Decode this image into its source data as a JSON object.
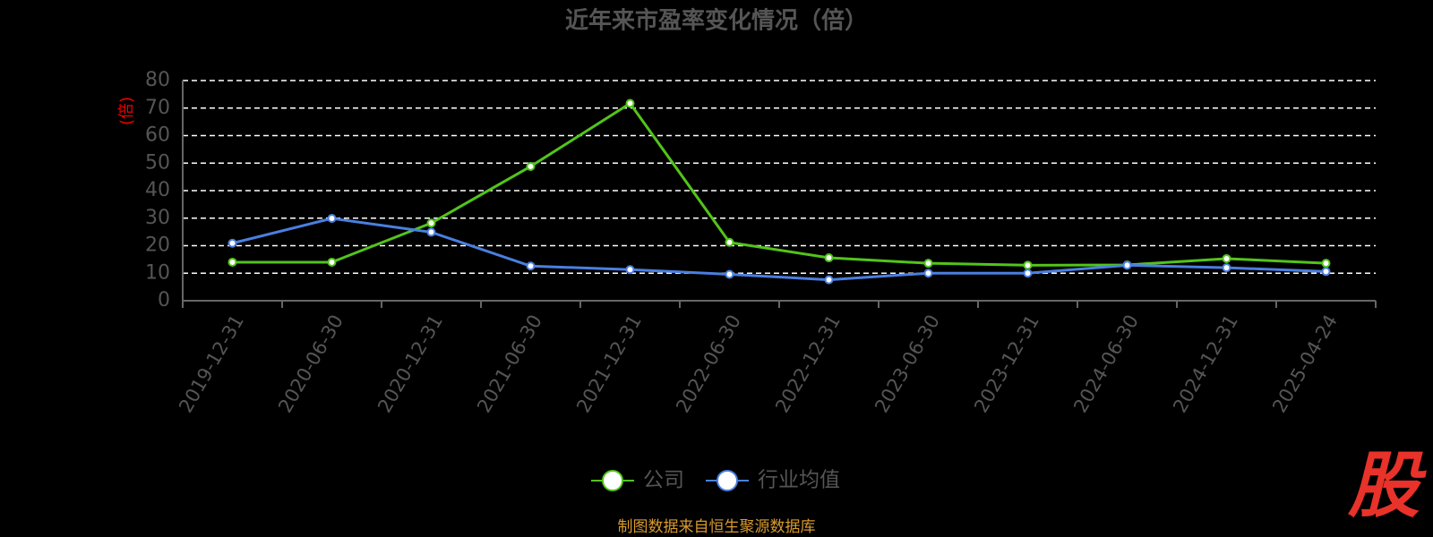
{
  "chart_data": {
    "type": "line",
    "title": "近年来市盈率变化情况（倍）",
    "y_label": "(倍)",
    "categories": [
      "2019-12-31",
      "2020-06-30",
      "2020-12-31",
      "2021-06-30",
      "2021-12-31",
      "2022-06-30",
      "2022-12-31",
      "2023-06-30",
      "2023-12-31",
      "2024-06-30",
      "2024-12-31",
      "2025-04-24"
    ],
    "series": [
      {
        "name": "公司",
        "color": "#52c41a",
        "values": [
          14,
          14,
          28.2,
          48.8,
          71.7,
          21.2,
          15.6,
          13.6,
          12.9,
          13,
          15.3,
          13.6
        ]
      },
      {
        "name": "行业均值",
        "color": "#4a7fe0",
        "values": [
          20.9,
          29.9,
          24.9,
          12.6,
          11.3,
          9.6,
          7.6,
          10,
          10,
          12.9,
          12,
          10.6
        ]
      }
    ],
    "ylim": [
      0,
      80
    ],
    "yticks": [
      0,
      10,
      20,
      30,
      40,
      50,
      60,
      70,
      80
    ],
    "grid": true,
    "source": "制图数据来自恒生聚源数据库",
    "logo": "股"
  }
}
